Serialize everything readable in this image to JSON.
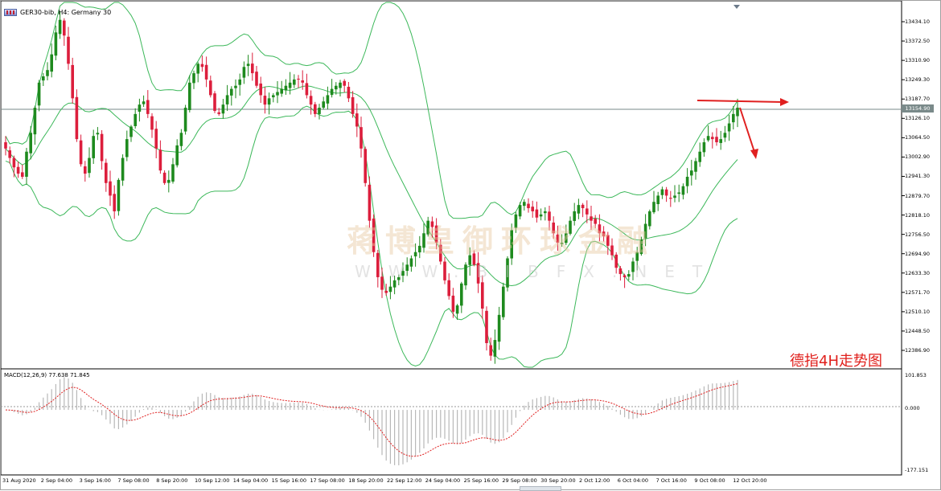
{
  "window": {
    "title": "GER30-bib, H4:  Germany 30",
    "symbol": "GER30-bib",
    "timeframe": "H4"
  },
  "watermark": {
    "text": "蒋博皇御环球金融",
    "subtext": "WWW.BIBFX.NET"
  },
  "caption": "德指4H走势图",
  "price_axis": {
    "labels": [
      "13434.10",
      "13372.50",
      "13310.90",
      "13249.30",
      "13187.70",
      "13126.10",
      "13064.50",
      "13002.90",
      "12941.30",
      "12879.70",
      "12818.10",
      "12756.50",
      "12694.90",
      "12633.30",
      "12571.70",
      "12510.10",
      "12448.50",
      "12386.90"
    ],
    "current_price": "13154.90"
  },
  "macd": {
    "label": "MACD(12,26,9) 77.638 71.845",
    "axis_labels": [
      "101.853",
      "0.000",
      "-177.151"
    ],
    "fast": 12,
    "slow": 26,
    "signal": 9,
    "value": 77.638,
    "signal_value": 71.845
  },
  "time_axis": {
    "labels": [
      "31 Aug 2020",
      "2 Sep 04:00",
      "3 Sep 16:00",
      "7 Sep 08:00",
      "8 Sep 20:00",
      "10 Sep 12:00",
      "14 Sep 04:00",
      "15 Sep 16:00",
      "17 Sep 08:00",
      "18 Sep 20:00",
      "22 Sep 12:00",
      "24 Sep 04:00",
      "25 Sep 16:00",
      "29 Sep 08:00",
      "30 Sep 20:00",
      "2 Oct 12:00",
      "6 Oct 04:00",
      "7 Oct 16:00",
      "9 Oct 08:00",
      "12 Oct 20:00"
    ]
  },
  "colors": {
    "bull": "#1e8a1e",
    "bear": "#dc1e3c",
    "band": "#3cb85a",
    "signal": "#e02020",
    "hist": "#b8b8b8",
    "arrow": "#e02020",
    "price_line": "#7a8a8a"
  },
  "chart_data": {
    "type": "candlestick",
    "instrument": "GER30-bib",
    "timeframe": "H4",
    "indicators": [
      "Bollinger Bands",
      "MACD(12,26,9)"
    ],
    "ylim": [
      12360,
      13460
    ],
    "closes": [
      13030,
      13000,
      12970,
      12950,
      12940,
      13020,
      13080,
      13160,
      13240,
      13260,
      13280,
      13330,
      13400,
      13440,
      13390,
      13300,
      13190,
      13060,
      12980,
      12950,
      13000,
      13070,
      13080,
      12990,
      12920,
      12880,
      12830,
      12930,
      13000,
      13060,
      13100,
      13140,
      13170,
      13180,
      13140,
      13090,
      13030,
      12960,
      12920,
      12930,
      12980,
      13040,
      13080,
      13160,
      13240,
      13270,
      13300,
      13290,
      13250,
      13200,
      13150,
      13140,
      13170,
      13200,
      13220,
      13230,
      13250,
      13290,
      13300,
      13270,
      13230,
      13200,
      13170,
      13190,
      13200,
      13210,
      13220,
      13230,
      13240,
      13250,
      13250,
      13240,
      13200,
      13170,
      13140,
      13160,
      13180,
      13200,
      13220,
      13230,
      13240,
      13230,
      13190,
      13140,
      13100,
      13030,
      12920,
      12800,
      12700,
      12620,
      12580,
      12570,
      12590,
      12610,
      12620,
      12640,
      12660,
      12680,
      12700,
      12720,
      12760,
      12800,
      12780,
      12730,
      12670,
      12610,
      12560,
      12510,
      12530,
      12600,
      12660,
      12690,
      12660,
      12600,
      12520,
      12410,
      12370,
      12420,
      12500,
      12590,
      12680,
      12770,
      12820,
      12850,
      12860,
      12840,
      12830,
      12810,
      12820,
      12830,
      12800,
      12760,
      12730,
      12730,
      12760,
      12800,
      12830,
      12850,
      12840,
      12820,
      12800,
      12790,
      12760,
      12750,
      12720,
      12690,
      12650,
      12630,
      12620,
      12630,
      12670,
      12700,
      12740,
      12790,
      12830,
      12860,
      12880,
      12900,
      12880,
      12870,
      12880,
      12890,
      12910,
      12940,
      12960,
      12990,
      13020,
      13050,
      13070,
      13060,
      13050,
      13060,
      13080,
      13110,
      13140,
      13160
    ]
  }
}
